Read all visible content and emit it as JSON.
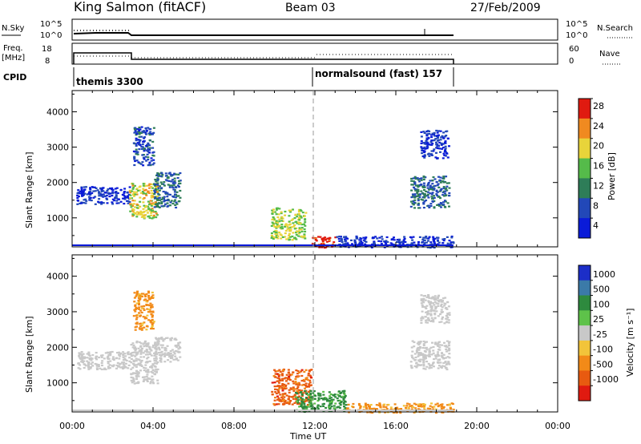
{
  "header": {
    "title": "King Salmon (fitACF)",
    "beam": "Beam 03",
    "date": "27/Feb/2009"
  },
  "top_panels": {
    "nsky_label": "N.Sky",
    "nsky_tick_hi": "10^5",
    "nsky_tick_lo": "10^0",
    "nsearch_label": "N.Search",
    "freq_label_1": "Freq.",
    "freq_label_2": "[MHz]",
    "freq_tick_hi": "18",
    "freq_tick_lo": "8",
    "nave_tick_hi": "60",
    "nave_tick_lo": "0",
    "nave_label": "Nave",
    "cpid_label": "CPID",
    "cpid_1": "themis 3300",
    "cpid_2": "normalsound (fast) 157"
  },
  "chart_data": [
    {
      "type": "heatmap",
      "title": "",
      "xlabel": "Time UT",
      "ylabel": "Slant Range [km]",
      "x_ticks": [
        "00:00",
        "04:00",
        "08:00",
        "12:00",
        "16:00",
        "20:00",
        "00:00"
      ],
      "xlim_hours": [
        0,
        24
      ],
      "y_ticks": [
        "1000",
        "2000",
        "3000",
        "4000"
      ],
      "ylim_km": [
        180,
        4600
      ],
      "colorbar_label": "Power [dB]",
      "colorbar_ticks": [
        "4",
        "8",
        "12",
        "16",
        "20",
        "24",
        "28"
      ],
      "colorbar_colors": [
        "#0a1bd8",
        "#2248b8",
        "#2e7d58",
        "#55bb4a",
        "#e8d43a",
        "#f08a20",
        "#e01a10"
      ],
      "data_extent_hours": [
        0,
        18.8
      ],
      "regions": [
        {
          "t": [
            0.2,
            2.8
          ],
          "range_km": [
            1400,
            1900
          ],
          "power_db": 6
        },
        {
          "t": [
            2.8,
            4.2
          ],
          "range_km": [
            1000,
            2000
          ],
          "power_db": 20
        },
        {
          "t": [
            3.0,
            4.0
          ],
          "range_km": [
            2500,
            3600
          ],
          "power_db": 8
        },
        {
          "t": [
            4.0,
            5.3
          ],
          "range_km": [
            1300,
            2300
          ],
          "power_db": 10
        },
        {
          "t": [
            9.8,
            11.5
          ],
          "range_km": [
            400,
            1300
          ],
          "power_db": 18
        },
        {
          "t": [
            11.8,
            13.0
          ],
          "range_km": [
            180,
            500
          ],
          "power_db": 28
        },
        {
          "t": [
            13.0,
            18.8
          ],
          "range_km": [
            180,
            500
          ],
          "power_db": 6
        },
        {
          "t": [
            16.7,
            18.6
          ],
          "range_km": [
            1300,
            2200
          ],
          "power_db": 10
        },
        {
          "t": [
            17.2,
            18.6
          ],
          "range_km": [
            2700,
            3500
          ],
          "power_db": 6
        }
      ]
    },
    {
      "type": "heatmap",
      "title": "",
      "xlabel": "Time UT",
      "ylabel": "Slant Range [km]",
      "x_ticks": [
        "00:00",
        "04:00",
        "08:00",
        "12:00",
        "16:00",
        "20:00",
        "00:00"
      ],
      "xlim_hours": [
        0,
        24
      ],
      "y_ticks": [
        "1000",
        "2000",
        "3000",
        "4000"
      ],
      "ylim_km": [
        180,
        4600
      ],
      "colorbar_label": "Velocity [m s⁻¹]",
      "colorbar_ticks": [
        "1000",
        "500",
        "100",
        "25",
        "-25",
        "-100",
        "-500",
        "-1000"
      ],
      "colorbar_colors": [
        "#1c2ec8",
        "#3b7aa8",
        "#2e8a3e",
        "#5ec24a",
        "#c8c8c8",
        "#f2c43a",
        "#f28a18",
        "#e85a10",
        "#e01a10"
      ],
      "data_extent_hours": [
        0,
        18.8
      ],
      "regions": [
        {
          "t": [
            0.2,
            2.8
          ],
          "range_km": [
            1400,
            1900
          ],
          "velocity": 0
        },
        {
          "t": [
            2.8,
            4.2
          ],
          "range_km": [
            1000,
            2200
          ],
          "velocity": 0
        },
        {
          "t": [
            3.0,
            4.0
          ],
          "range_km": [
            2500,
            3600
          ],
          "velocity": -100
        },
        {
          "t": [
            4.0,
            5.3
          ],
          "range_km": [
            1600,
            2300
          ],
          "velocity": 0
        },
        {
          "t": [
            9.8,
            11.8
          ],
          "range_km": [
            400,
            1400
          ],
          "velocity": -500
        },
        {
          "t": [
            11.0,
            13.5
          ],
          "range_km": [
            200,
            800
          ],
          "velocity": 100
        },
        {
          "t": [
            13.5,
            18.8
          ],
          "range_km": [
            180,
            450
          ],
          "velocity": -100
        },
        {
          "t": [
            16.7,
            18.6
          ],
          "range_km": [
            1400,
            2200
          ],
          "velocity": 0
        },
        {
          "t": [
            17.2,
            18.6
          ],
          "range_km": [
            2700,
            3500
          ],
          "velocity": 0
        }
      ]
    }
  ]
}
